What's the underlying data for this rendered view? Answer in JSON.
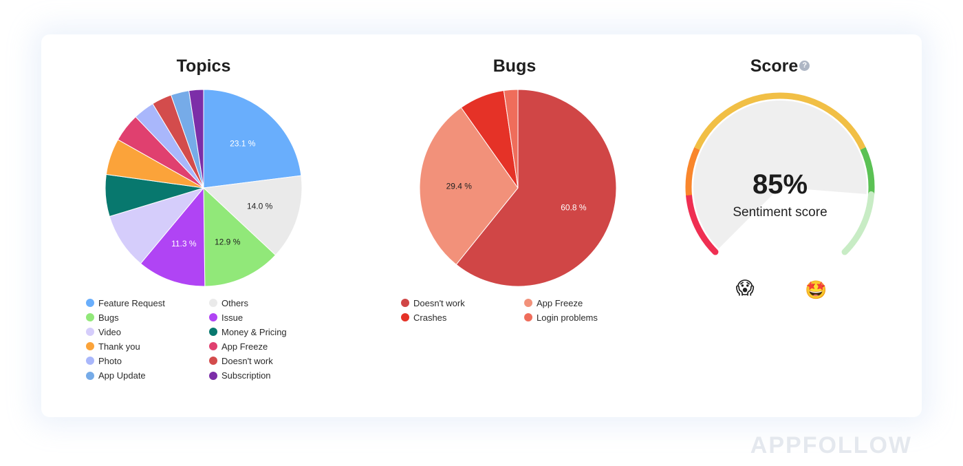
{
  "chart_data": [
    {
      "type": "pie",
      "title": "Topics",
      "slices": [
        {
          "label": "Feature Request",
          "value": 23.1,
          "color": "#69aefc",
          "display": "23.1 %",
          "text_color": "#ffffff"
        },
        {
          "label": "Others",
          "value": 14.0,
          "color": "#eaeaea",
          "display": "14.0 %",
          "text_color": "#222222"
        },
        {
          "label": "Bugs",
          "value": 12.9,
          "color": "#91e879",
          "display": "12.9 %",
          "text_color": "#222222"
        },
        {
          "label": "Issue",
          "value": 11.3,
          "color": "#b044f4",
          "display": "11.3 %",
          "text_color": "#ffffff"
        },
        {
          "label": "Video",
          "value": 9.3,
          "color": "#d5cdfb",
          "display": "",
          "text_color": "#222222"
        },
        {
          "label": "Money & Pricing",
          "value": 6.9,
          "color": "#08786e",
          "display": "",
          "text_color": "#ffffff"
        },
        {
          "label": "Thank you",
          "value": 6.0,
          "color": "#fba33a",
          "display": "",
          "text_color": "#ffffff"
        },
        {
          "label": "App Freeze",
          "value": 4.7,
          "color": "#e0406f",
          "display": "",
          "text_color": "#ffffff"
        },
        {
          "label": "Photo",
          "value": 3.5,
          "color": "#a9b7fb",
          "display": "",
          "text_color": "#ffffff"
        },
        {
          "label": "Doesn't work",
          "value": 3.3,
          "color": "#d34c4c",
          "display": "",
          "text_color": "#ffffff"
        },
        {
          "label": "App Update",
          "value": 3.0,
          "color": "#76abe8",
          "display": "",
          "text_color": "#ffffff"
        },
        {
          "label": "Subscription",
          "value": 2.4,
          "color": "#7c2ea8",
          "display": "",
          "text_color": "#ffffff"
        }
      ]
    },
    {
      "type": "pie",
      "title": "Bugs",
      "slices": [
        {
          "label": "Doesn't work",
          "value": 60.8,
          "color": "#d04646",
          "display": "60.8 %",
          "text_color": "#ffffff"
        },
        {
          "label": "App Freeze",
          "value": 29.4,
          "color": "#f2917a",
          "display": "29.4 %",
          "text_color": "#222222"
        },
        {
          "label": "Crashes",
          "value": 7.5,
          "color": "#e53227",
          "display": "",
          "text_color": "#ffffff"
        },
        {
          "label": "Login problems",
          "value": 2.3,
          "color": "#ef6d5b",
          "display": "",
          "text_color": "#ffffff"
        }
      ]
    }
  ],
  "score": {
    "title": "Score",
    "help_icon": "question-circle-icon",
    "value": 85,
    "value_text": "85%",
    "label": "Sentiment score",
    "low_emoji": "😱",
    "high_emoji": "🤩",
    "gauge_colors": [
      "#ef2f52",
      "#f9862c",
      "#f1bf45",
      "#5bc154",
      "#c8ecc5"
    ]
  },
  "watermark": "APPFOLLOW"
}
